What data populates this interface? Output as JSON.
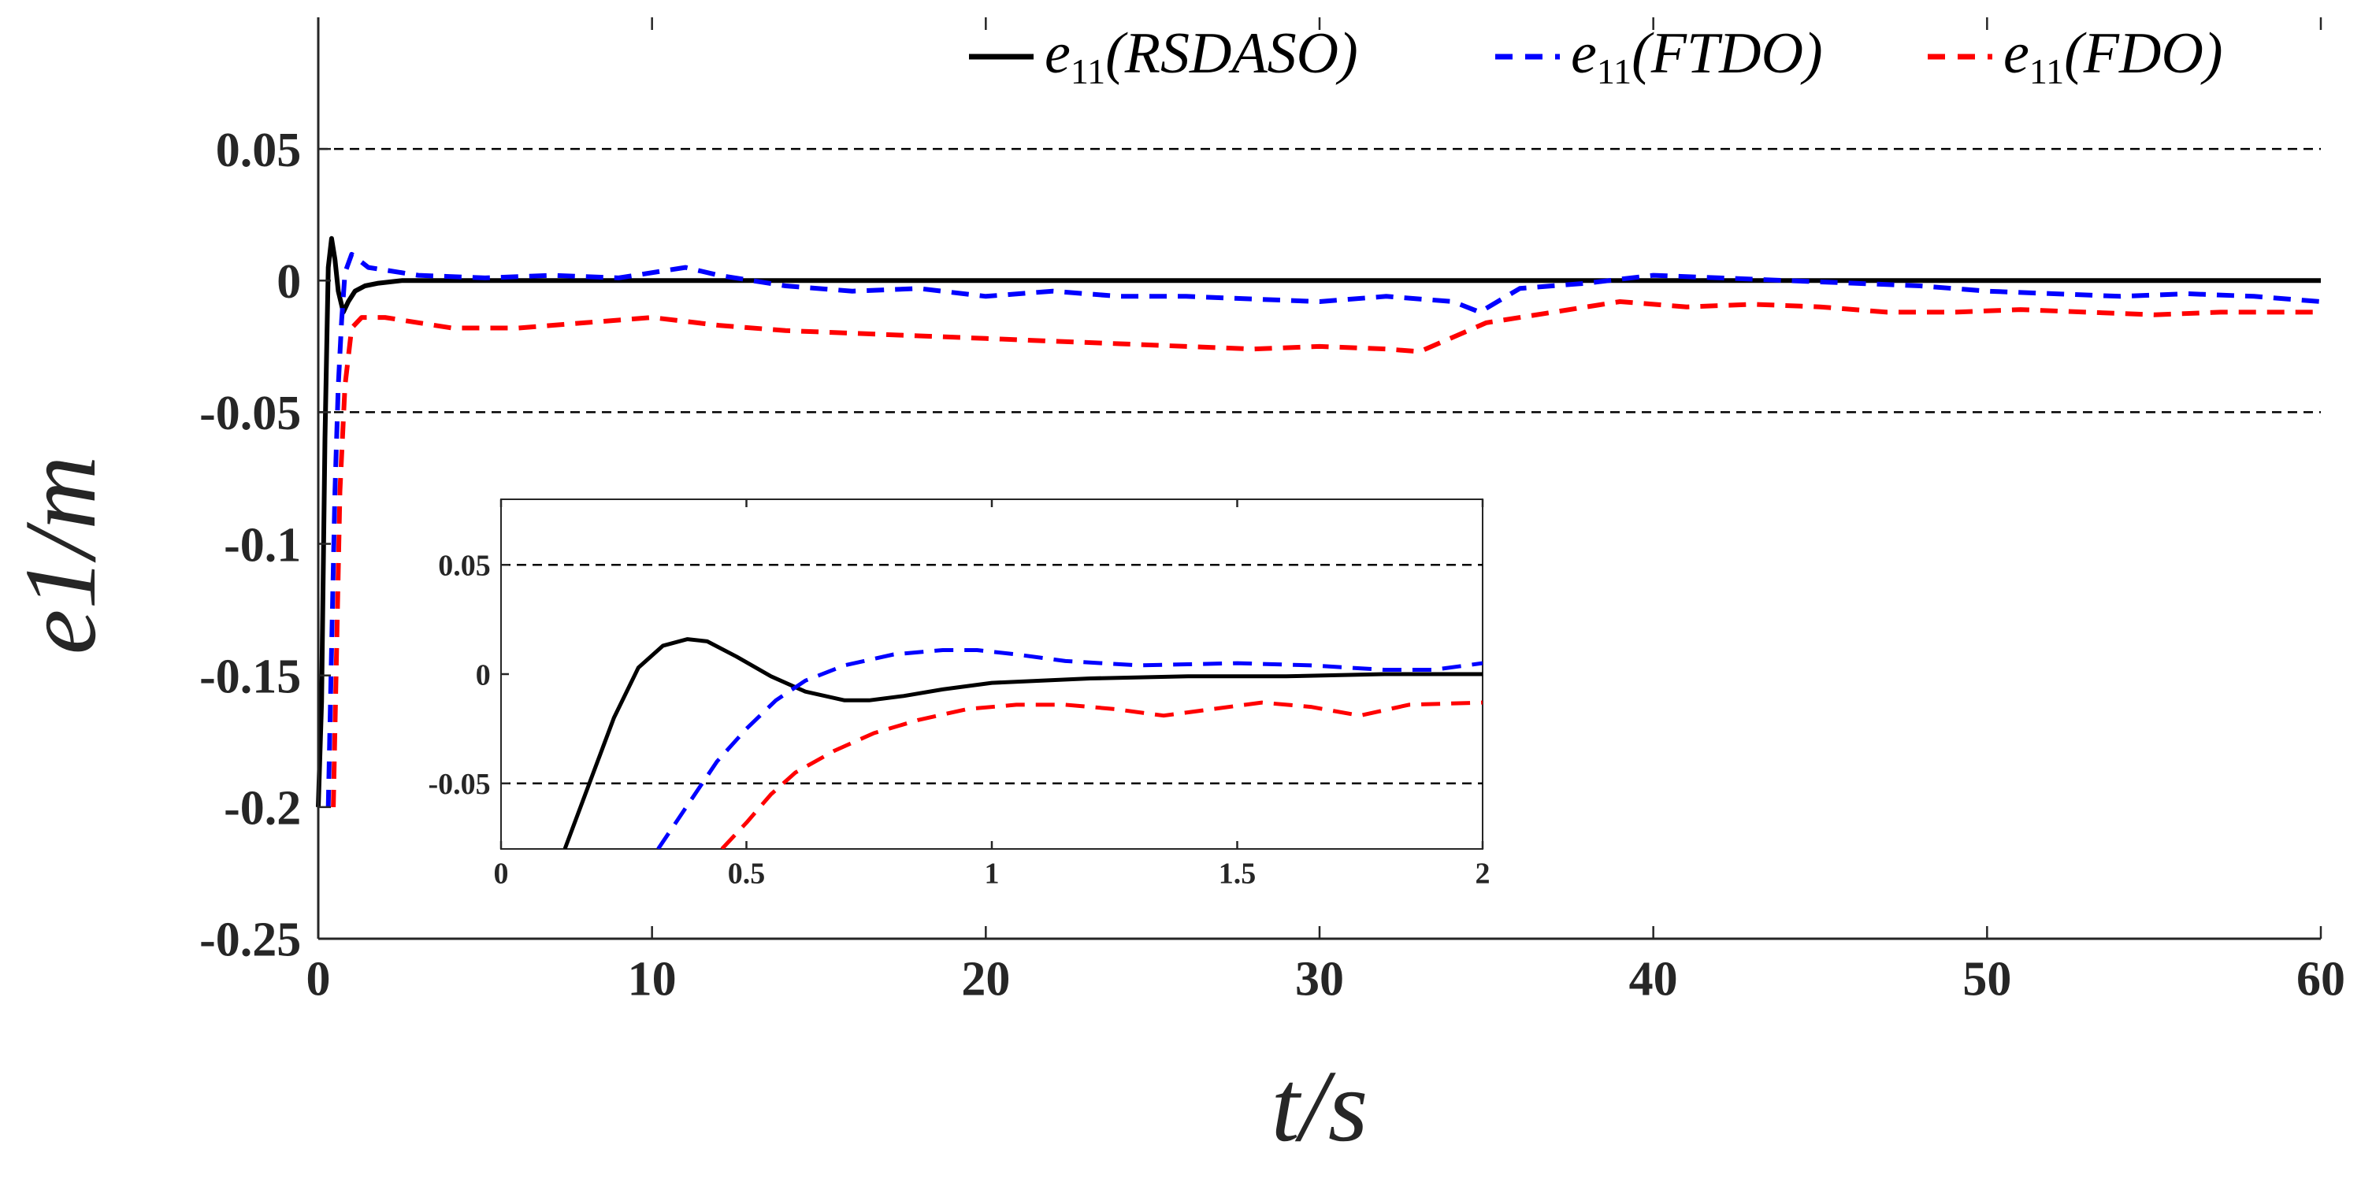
{
  "chart_data": [
    {
      "id": "main",
      "type": "line",
      "title": "",
      "xlabel": "t/s",
      "ylabel": "e1/m",
      "xlim": [
        0,
        60
      ],
      "ylim": [
        -0.25,
        0.1
      ],
      "xticks": [
        0,
        10,
        20,
        30,
        40,
        50,
        60
      ],
      "xtick_labels": [
        "0",
        "10",
        "20",
        "30",
        "40",
        "50",
        "60"
      ],
      "yticks": [
        -0.25,
        -0.2,
        -0.15,
        -0.1,
        -0.05,
        0,
        0.05
      ],
      "ytick_labels": [
        "-0.25",
        "-0.2",
        "-0.15",
        "-0.1",
        "-0.05",
        "0",
        "0.05"
      ],
      "reference_lines": [
        0.05,
        -0.05
      ],
      "legend": {
        "position": "top-right",
        "entries": [
          {
            "base": "e",
            "sub": "11",
            "tag": "(RSDASO)",
            "color": "#000000",
            "dash": "solid"
          },
          {
            "base": "e",
            "sub": "11",
            "tag": "(FTDO)",
            "color": "#0000ff",
            "dash": "dashed"
          },
          {
            "base": "e",
            "sub": "11",
            "tag": "(FDO)",
            "color": "#ff0000",
            "dash": "dashed"
          }
        ]
      },
      "series": [
        {
          "name": "e11(RSDASO)",
          "color": "#000000",
          "dash": "solid",
          "x": [
            0,
            0.1,
            0.2,
            0.3,
            0.4,
            0.5,
            0.6,
            0.75,
            0.9,
            1.1,
            1.4,
            1.8,
            2.5,
            5,
            10,
            15,
            20,
            25,
            30,
            35,
            40,
            45,
            50,
            55,
            60
          ],
          "y": [
            -0.2,
            -0.16,
            -0.06,
            0.005,
            0.016,
            0.008,
            -0.004,
            -0.012,
            -0.008,
            -0.004,
            -0.002,
            -0.001,
            0,
            0,
            0,
            0,
            0,
            0,
            0,
            0,
            0,
            0,
            0,
            0,
            0
          ]
        },
        {
          "name": "e11(FTDO)",
          "color": "#0000ff",
          "dash": "dashed",
          "x": [
            0.3,
            0.4,
            0.5,
            0.6,
            0.7,
            0.8,
            1.0,
            1.5,
            3,
            5,
            7,
            9,
            11,
            12,
            14,
            16,
            18,
            20,
            22,
            24,
            26,
            28,
            30,
            32,
            34,
            34.8,
            36,
            38,
            40,
            42,
            44,
            46,
            48,
            50,
            52,
            54,
            56,
            58,
            60
          ],
          "y": [
            -0.2,
            -0.14,
            -0.08,
            -0.04,
            -0.015,
            0.003,
            0.01,
            0.005,
            0.002,
            0.001,
            0.002,
            0.001,
            0.005,
            0.002,
            -0.002,
            -0.004,
            -0.003,
            -0.006,
            -0.004,
            -0.006,
            -0.006,
            -0.007,
            -0.008,
            -0.006,
            -0.008,
            -0.012,
            -0.003,
            -0.001,
            0.002,
            0.001,
            0,
            -0.001,
            -0.002,
            -0.004,
            -0.005,
            -0.006,
            -0.005,
            -0.006,
            -0.008
          ]
        },
        {
          "name": "e11(FDO)",
          "color": "#ff0000",
          "dash": "dashed",
          "x": [
            0.45,
            0.55,
            0.65,
            0.8,
            1.0,
            1.3,
            2,
            3,
            4,
            6,
            8,
            10,
            12,
            14,
            16,
            18,
            20,
            22,
            24,
            26,
            28,
            30,
            32,
            33,
            35,
            37,
            39,
            41,
            43,
            45,
            47,
            49,
            51,
            53,
            55,
            57,
            60
          ],
          "y": [
            -0.2,
            -0.14,
            -0.08,
            -0.04,
            -0.018,
            -0.014,
            -0.014,
            -0.016,
            -0.018,
            -0.018,
            -0.016,
            -0.014,
            -0.017,
            -0.019,
            -0.02,
            -0.021,
            -0.022,
            -0.023,
            -0.024,
            -0.025,
            -0.026,
            -0.025,
            -0.026,
            -0.027,
            -0.016,
            -0.012,
            -0.008,
            -0.01,
            -0.009,
            -0.01,
            -0.012,
            -0.012,
            -0.011,
            -0.012,
            -0.013,
            -0.012,
            -0.012
          ]
        }
      ]
    },
    {
      "id": "inset",
      "type": "line",
      "title": "",
      "xlabel": "",
      "ylabel": "",
      "xlim": [
        0,
        2
      ],
      "ylim": [
        -0.08,
        0.08
      ],
      "xticks": [
        0,
        0.5,
        1,
        1.5,
        2
      ],
      "xtick_labels": [
        "0",
        "0.5",
        "1",
        "1.5",
        "2"
      ],
      "yticks": [
        -0.05,
        0,
        0.05
      ],
      "ytick_labels": [
        "-0.05",
        "0",
        "0.05"
      ],
      "reference_lines": [
        0.05,
        -0.05
      ],
      "series": [
        {
          "name": "e11(RSDASO)",
          "color": "#000000",
          "dash": "solid",
          "x": [
            0.13,
            0.18,
            0.23,
            0.28,
            0.33,
            0.38,
            0.42,
            0.48,
            0.55,
            0.62,
            0.7,
            0.75,
            0.82,
            0.9,
            1.0,
            1.2,
            1.4,
            1.6,
            1.8,
            2.0
          ],
          "y": [
            -0.08,
            -0.05,
            -0.02,
            0.003,
            0.013,
            0.016,
            0.015,
            0.008,
            -0.001,
            -0.008,
            -0.012,
            -0.012,
            -0.01,
            -0.007,
            -0.004,
            -0.002,
            -0.001,
            -0.001,
            0,
            0
          ]
        },
        {
          "name": "e11(FTDO)",
          "color": "#0000ff",
          "dash": "dashed",
          "x": [
            0.32,
            0.38,
            0.44,
            0.5,
            0.56,
            0.62,
            0.7,
            0.8,
            0.9,
            0.97,
            1.05,
            1.15,
            1.3,
            1.5,
            1.65,
            1.8,
            1.9,
            2.0
          ],
          "y": [
            -0.08,
            -0.06,
            -0.04,
            -0.025,
            -0.012,
            -0.003,
            0.004,
            0.009,
            0.011,
            0.011,
            0.009,
            0.006,
            0.004,
            0.005,
            0.004,
            0.002,
            0.002,
            0.005
          ]
        },
        {
          "name": "e11(FDO)",
          "color": "#ff0000",
          "dash": "dashed",
          "x": [
            0.45,
            0.5,
            0.55,
            0.6,
            0.68,
            0.76,
            0.85,
            0.95,
            1.05,
            1.15,
            1.25,
            1.35,
            1.45,
            1.55,
            1.65,
            1.75,
            1.85,
            2.0
          ],
          "y": [
            -0.08,
            -0.068,
            -0.055,
            -0.045,
            -0.035,
            -0.027,
            -0.021,
            -0.016,
            -0.014,
            -0.014,
            -0.016,
            -0.019,
            -0.016,
            -0.013,
            -0.015,
            -0.019,
            -0.014,
            -0.013
          ]
        }
      ]
    }
  ]
}
